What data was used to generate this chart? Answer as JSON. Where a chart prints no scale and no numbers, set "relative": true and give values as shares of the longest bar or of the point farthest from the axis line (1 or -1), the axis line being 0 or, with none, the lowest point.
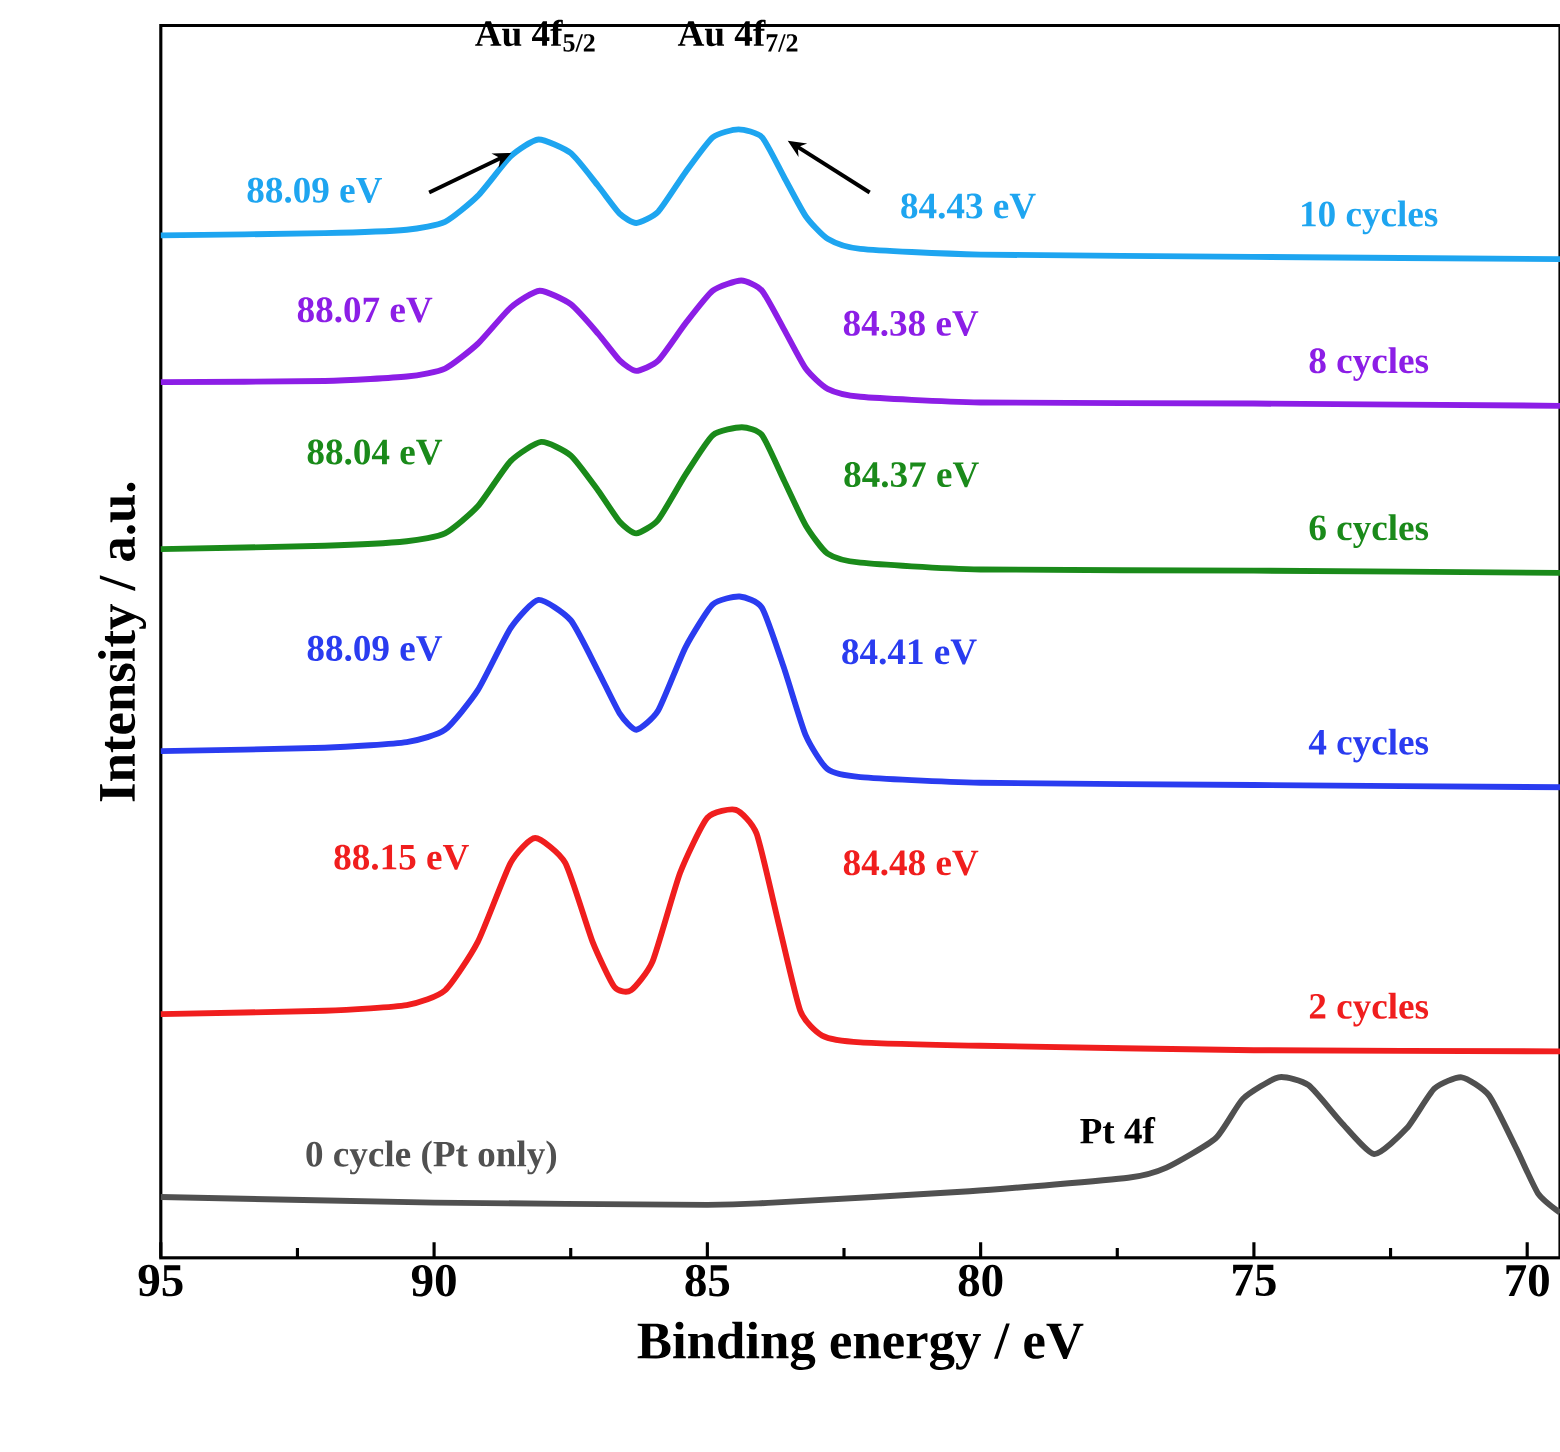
{
  "chart_data": {
    "type": "line",
    "xlabel": "Binding energy / eV",
    "ylabel": "Intensity / a.u.",
    "relative": true,
    "xlim": [
      95,
      69.4
    ],
    "xticks": [
      95,
      90,
      85,
      80,
      75,
      70
    ],
    "series": [
      {
        "name": "10 cycles",
        "color": "#1ea5f0",
        "x": [
          95,
          92,
          90.5,
          89.8,
          89.2,
          88.6,
          88.09,
          87.5,
          87,
          86.6,
          86.3,
          85.9,
          85.4,
          84.9,
          84.43,
          84.0,
          83.6,
          83.2,
          82.8,
          82.2,
          80,
          75,
          69.4
        ],
        "values": [
          0.906,
          0.908,
          0.911,
          0.918,
          0.941,
          0.976,
          0.991,
          0.979,
          0.95,
          0.925,
          0.917,
          0.927,
          0.962,
          0.993,
          1.0,
          0.993,
          0.958,
          0.923,
          0.903,
          0.894,
          0.889,
          0.887,
          0.885
        ]
      },
      {
        "name": "8 cycles",
        "color": "#8c1ee6",
        "x": [
          95,
          92,
          90.5,
          89.8,
          89.2,
          88.6,
          88.07,
          87.5,
          87,
          86.6,
          86.3,
          85.9,
          85.4,
          84.9,
          84.38,
          84.0,
          83.6,
          83.2,
          82.8,
          82.2,
          80,
          75,
          69.4
        ],
        "values": [
          0.776,
          0.777,
          0.781,
          0.788,
          0.81,
          0.842,
          0.857,
          0.845,
          0.819,
          0.795,
          0.786,
          0.795,
          0.828,
          0.857,
          0.866,
          0.857,
          0.823,
          0.788,
          0.77,
          0.763,
          0.758,
          0.757,
          0.755
        ]
      },
      {
        "name": "6 cycles",
        "color": "#1a8a1a",
        "x": [
          95,
          92,
          90.5,
          89.8,
          89.2,
          88.6,
          88.04,
          87.5,
          87,
          86.6,
          86.3,
          85.9,
          85.4,
          84.9,
          84.37,
          84.0,
          83.6,
          83.2,
          82.8,
          82.2,
          80,
          75,
          69.4
        ],
        "values": [
          0.628,
          0.631,
          0.635,
          0.642,
          0.666,
          0.706,
          0.723,
          0.711,
          0.68,
          0.652,
          0.642,
          0.654,
          0.694,
          0.729,
          0.736,
          0.729,
          0.689,
          0.649,
          0.624,
          0.616,
          0.61,
          0.609,
          0.607
        ]
      },
      {
        "name": "4 cycles",
        "color": "#2a3cf0",
        "x": [
          95,
          92,
          90.5,
          89.8,
          89.2,
          88.6,
          88.09,
          87.5,
          87,
          86.6,
          86.3,
          85.9,
          85.4,
          84.9,
          84.41,
          84.0,
          83.6,
          83.2,
          82.8,
          82.2,
          80,
          75,
          69.4
        ],
        "values": [
          0.449,
          0.452,
          0.457,
          0.468,
          0.503,
          0.558,
          0.583,
          0.565,
          0.52,
          0.482,
          0.468,
          0.485,
          0.541,
          0.579,
          0.586,
          0.576,
          0.523,
          0.463,
          0.433,
          0.426,
          0.421,
          0.419,
          0.417
        ]
      },
      {
        "name": "2 cycles",
        "color": "#f01e1e",
        "x": [
          95,
          92,
          90.5,
          89.8,
          89.2,
          88.6,
          88.15,
          87.6,
          87.1,
          86.7,
          86.4,
          86.0,
          85.5,
          85.0,
          84.48,
          84.1,
          83.7,
          83.3,
          82.9,
          82.2,
          80,
          75,
          69.4
        ],
        "values": [
          0.216,
          0.219,
          0.224,
          0.237,
          0.28,
          0.35,
          0.372,
          0.35,
          0.28,
          0.24,
          0.237,
          0.263,
          0.341,
          0.39,
          0.397,
          0.376,
          0.297,
          0.219,
          0.197,
          0.191,
          0.188,
          0.184,
          0.183
        ]
      },
      {
        "name": "0 cycle (Pt only)",
        "color": "#505050",
        "x": [
          95,
          90,
          85,
          83.8,
          80.2,
          77.3,
          76.6,
          75.7,
          75.2,
          74.55,
          74.0,
          73.4,
          72.8,
          72.2,
          71.7,
          71.2,
          70.7,
          70.2,
          69.8,
          69.4
        ],
        "values": [
          0.054,
          0.049,
          0.047,
          0.049,
          0.059,
          0.071,
          0.08,
          0.106,
          0.141,
          0.16,
          0.153,
          0.12,
          0.092,
          0.115,
          0.15,
          0.16,
          0.144,
          0.097,
          0.057,
          0.04
        ]
      }
    ],
    "annotations": [
      {
        "text": "Au 4f$_{5/2}$",
        "x": 88.09,
        "y": 0.991
      },
      {
        "text": "Au 4f$_{7/2}$",
        "x": 84.43,
        "y": 1.0
      },
      "88.09 eV",
      "84.43 eV",
      "88.07 eV",
      "84.38 eV",
      "88.04 eV",
      "84.37 eV",
      "88.09 eV",
      "84.41 eV",
      "88.15 eV",
      "84.48 eV",
      "Pt 4f"
    ]
  }
}
